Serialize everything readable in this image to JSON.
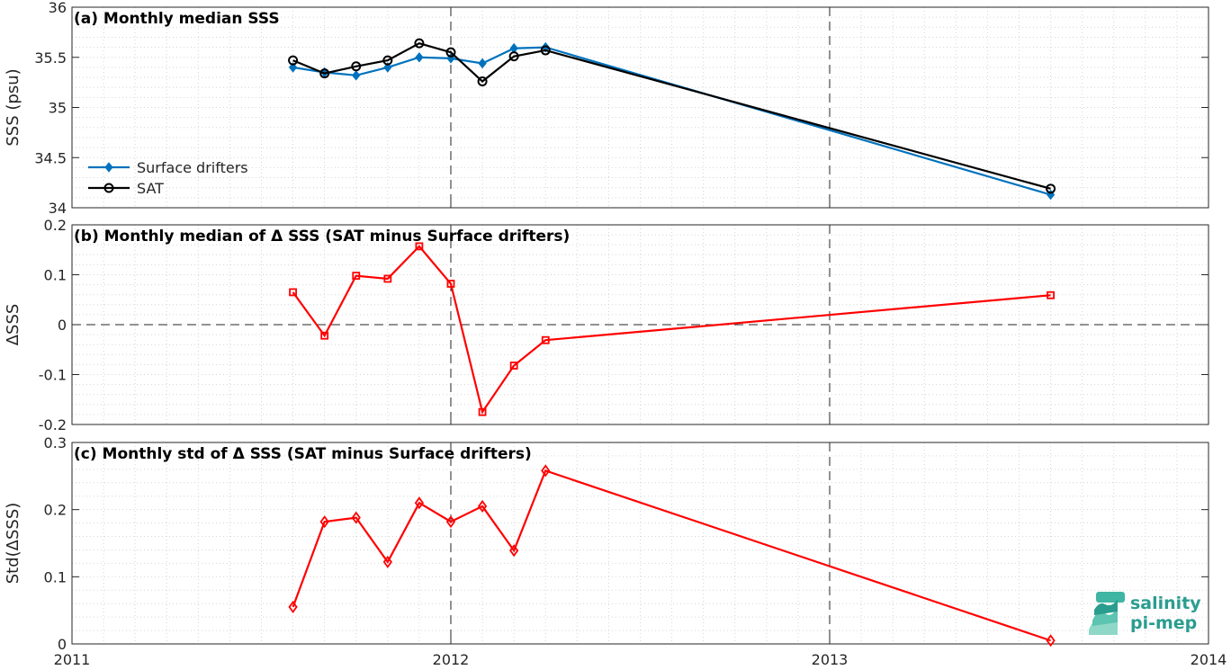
{
  "chart_data": [
    {
      "type": "line",
      "title": "(a) Monthly median SSS",
      "ylabel": "SSS (psu)",
      "xlim": [
        "2011-01-01",
        "2014-01-01"
      ],
      "ylim": [
        34,
        36
      ],
      "yticks": [
        "34",
        "34.5",
        "35",
        "35.5",
        "36"
      ],
      "grid": true,
      "legend_position": "lower-left",
      "x": [
        "2011-08",
        "2011-09",
        "2011-10",
        "2011-11",
        "2011-12",
        "2012-01",
        "2012-02",
        "2012-03",
        "2012-04",
        "2013-08"
      ],
      "series": [
        {
          "name": "Surface drifters",
          "color": "#0072bd",
          "marker": "diamond-filled",
          "values": [
            35.4,
            35.35,
            35.32,
            35.4,
            35.5,
            35.49,
            35.44,
            35.59,
            35.6,
            34.13
          ]
        },
        {
          "name": "SAT",
          "color": "#000000",
          "marker": "circle-open",
          "values": [
            35.47,
            35.34,
            35.41,
            35.47,
            35.64,
            35.55,
            35.26,
            35.51,
            35.57,
            34.19
          ]
        }
      ]
    },
    {
      "type": "line",
      "title": "(b) Monthly median of Δ SSS (SAT minus Surface drifters)",
      "ylabel": "ΔSSS",
      "xlim": [
        "2011-01-01",
        "2014-01-01"
      ],
      "ylim": [
        -0.2,
        0.2
      ],
      "yticks": [
        "-0.2",
        "-0.1",
        "0",
        "0.1",
        "0.2"
      ],
      "grid": true,
      "zero_line": true,
      "x": [
        "2011-08",
        "2011-09",
        "2011-10",
        "2011-11",
        "2011-12",
        "2012-01",
        "2012-02",
        "2012-03",
        "2012-04",
        "2013-08"
      ],
      "series": [
        {
          "color": "#ff0000",
          "marker": "square-open",
          "values": [
            0.065,
            -0.022,
            0.098,
            0.092,
            0.157,
            0.082,
            -0.175,
            -0.082,
            -0.031,
            0.059
          ]
        }
      ]
    },
    {
      "type": "line",
      "title": "(c) Monthly std of Δ SSS (SAT minus Surface drifters)",
      "ylabel": "Std(ΔSSS)",
      "xlim": [
        "2011-01-01",
        "2014-01-01"
      ],
      "ylim": [
        0,
        0.3
      ],
      "yticks": [
        "0",
        "0.1",
        "0.2",
        "0.3"
      ],
      "xticks": [
        "2011",
        "2012",
        "2013",
        "2014"
      ],
      "grid": true,
      "x": [
        "2011-08",
        "2011-09",
        "2011-10",
        "2011-11",
        "2011-12",
        "2012-01",
        "2012-02",
        "2012-03",
        "2012-04",
        "2013-08"
      ],
      "series": [
        {
          "color": "#ff0000",
          "marker": "diamond-open",
          "values": [
            0.055,
            0.182,
            0.188,
            0.122,
            0.21,
            0.182,
            0.205,
            0.139,
            0.258,
            0.005
          ]
        }
      ]
    }
  ],
  "logo": {
    "line1": "salinity",
    "line2": "pi-mep",
    "color": "#2a9d8f"
  }
}
